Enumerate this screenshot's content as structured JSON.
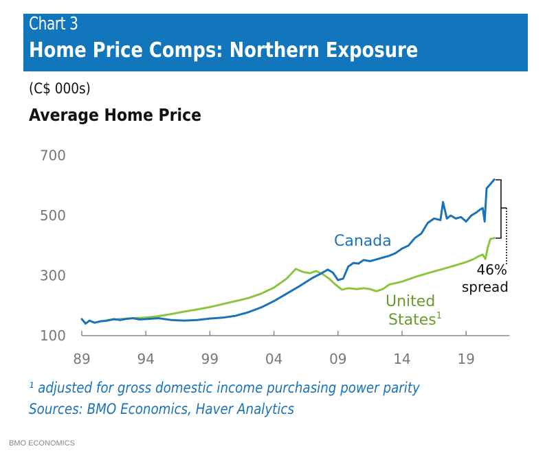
{
  "header": {
    "chart_number": "Chart 3",
    "title": "Home Price Comps: Northern Exposure"
  },
  "units_label": "(C$ 000s)",
  "subtitle": "Average Home Price",
  "footnote": "¹ adjusted for gross domestic income purchasing power parity",
  "sources": "Sources: BMO Economics, Haver Analytics",
  "credit": "BMO ECONOMICS",
  "colors": {
    "header_band": "#1276bd",
    "canada": "#1a72b8",
    "united_states": "#8cc63f",
    "united_states_label": "#6a9a2a",
    "axis": "#888888"
  },
  "chart_data": {
    "type": "line",
    "title": "Average Home Price",
    "ylabel": "(C$ 000s)",
    "xlabel": "",
    "ylim": [
      100,
      700
    ],
    "xlim": [
      1989,
      2022.5
    ],
    "yticks": [
      100,
      300,
      500,
      700
    ],
    "ytick_labels": [
      "100",
      "300",
      "500",
      "700"
    ],
    "xticks": [
      1989,
      1994,
      1999,
      2004,
      2009,
      2014,
      2019
    ],
    "xtick_labels": [
      "89",
      "94",
      "99",
      "04",
      "09",
      "14",
      "19"
    ],
    "grid": false,
    "legend": "inline-labels",
    "series": [
      {
        "name": "Canada",
        "label": "Canada",
        "x": [
          1989.0,
          1989.3,
          1989.6,
          1990.0,
          1990.5,
          1991.0,
          1991.5,
          1992.0,
          1992.5,
          1993.0,
          1993.5,
          1994.0,
          1995.0,
          1996.0,
          1997.0,
          1998.0,
          1999.0,
          2000.0,
          2001.0,
          2002.0,
          2003.0,
          2004.0,
          2005.0,
          2006.0,
          2007.0,
          2007.6,
          2008.2,
          2008.6,
          2009.0,
          2009.4,
          2009.8,
          2010.2,
          2010.6,
          2011.0,
          2011.5,
          2012.0,
          2012.5,
          2013.0,
          2013.5,
          2014.0,
          2014.5,
          2015.0,
          2015.5,
          2016.0,
          2016.5,
          2017.0,
          2017.2,
          2017.5,
          2017.8,
          2018.2,
          2018.6,
          2019.0,
          2019.4,
          2019.8,
          2020.1,
          2020.3,
          2020.45,
          2020.6,
          2020.8,
          2021.0,
          2021.2
        ],
        "values": [
          155,
          140,
          150,
          143,
          148,
          150,
          155,
          152,
          156,
          158,
          154,
          155,
          158,
          152,
          150,
          152,
          157,
          160,
          166,
          178,
          194,
          215,
          240,
          265,
          292,
          305,
          320,
          310,
          285,
          290,
          330,
          342,
          340,
          352,
          348,
          354,
          360,
          366,
          375,
          390,
          400,
          425,
          440,
          475,
          490,
          485,
          545,
          490,
          500,
          490,
          495,
          480,
          500,
          510,
          520,
          525,
          480,
          590,
          600,
          610,
          620
        ]
      },
      {
        "name": "United States",
        "label": "United States¹",
        "x": [
          1991.0,
          1992.0,
          1993.0,
          1994.0,
          1995.0,
          1996.0,
          1997.0,
          1998.0,
          1999.0,
          2000.0,
          2001.0,
          2002.0,
          2003.0,
          2004.0,
          2005.0,
          2005.7,
          2006.3,
          2006.8,
          2007.3,
          2007.8,
          2008.3,
          2008.8,
          2009.3,
          2009.8,
          2010.5,
          2011.0,
          2011.5,
          2012.0,
          2012.5,
          2013.0,
          2013.5,
          2014.0,
          2015.0,
          2016.0,
          2017.0,
          2018.0,
          2019.0,
          2019.6,
          2020.0,
          2020.3,
          2020.5,
          2020.7,
          2020.9,
          2021.2
        ],
        "values": [
          152,
          155,
          158,
          160,
          165,
          172,
          180,
          187,
          195,
          205,
          215,
          225,
          240,
          260,
          290,
          322,
          312,
          308,
          315,
          305,
          290,
          270,
          253,
          258,
          255,
          258,
          255,
          248,
          255,
          270,
          275,
          280,
          295,
          308,
          320,
          332,
          345,
          355,
          365,
          370,
          355,
          395,
          422,
          425
        ]
      }
    ],
    "annotations": {
      "spread_value": "46%",
      "spread_text": "spread",
      "canada_label": "Canada",
      "us_label_line1": "United",
      "us_label_line2": "States",
      "us_superscript": "1"
    }
  }
}
